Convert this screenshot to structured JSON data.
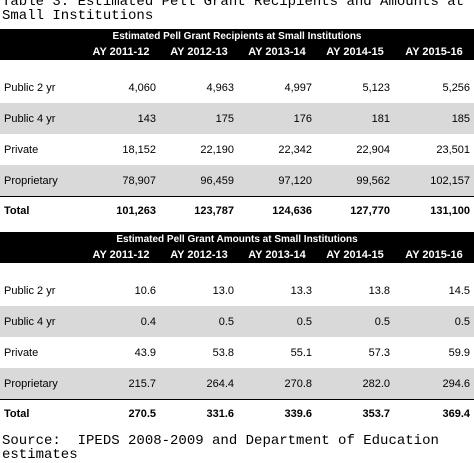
{
  "caption": "Table 3: Estimated Pell Grant Recipients and Amounts at\nSmall Institutions",
  "source": "Source:  IPEDS 2008-2009 and Department of Education\nestimates",
  "tables": [
    {
      "title": "Estimated Pell Grant Recipients at Small Institutions",
      "columns": [
        "AY 2011-12",
        "AY 2012-13",
        "AY 2013-14",
        "AY 2014-15",
        "AY 2015-16"
      ],
      "rows": [
        {
          "label": "Public 2 yr",
          "values": [
            "4,060",
            "4,963",
            "4,997",
            "5,123",
            "5,256"
          ]
        },
        {
          "label": "Public 4 yr",
          "values": [
            "143",
            "175",
            "176",
            "181",
            "185"
          ]
        },
        {
          "label": "Private",
          "values": [
            "18,152",
            "22,190",
            "22,342",
            "22,904",
            "23,501"
          ]
        },
        {
          "label": "Proprietary",
          "values": [
            "78,907",
            "96,459",
            "97,120",
            "99,562",
            "102,157"
          ]
        }
      ],
      "total": {
        "label": "Total",
        "values": [
          "101,263",
          "123,787",
          "124,636",
          "127,770",
          "131,100"
        ]
      }
    },
    {
      "title": "Estimated Pell Grant Amounts at Small Institutions",
      "columns": [
        "AY 2011-12",
        "AY 2012-13",
        "AY 2013-14",
        "AY 2014-15",
        "AY 2015-16"
      ],
      "rows": [
        {
          "label": "Public 2 yr",
          "values": [
            "10.6",
            "13.0",
            "13.3",
            "13.8",
            "14.5"
          ]
        },
        {
          "label": "Public 4 yr",
          "values": [
            "0.4",
            "0.5",
            "0.5",
            "0.5",
            "0.5"
          ]
        },
        {
          "label": "Private",
          "values": [
            "43.9",
            "53.8",
            "55.1",
            "57.3",
            "59.9"
          ]
        },
        {
          "label": "Proprietary",
          "values": [
            "215.7",
            "264.4",
            "270.8",
            "282.0",
            "294.6"
          ]
        }
      ],
      "total": {
        "label": "Total",
        "values": [
          "270.5",
          "331.6",
          "339.6",
          "353.7",
          "369.4"
        ]
      }
    }
  ]
}
